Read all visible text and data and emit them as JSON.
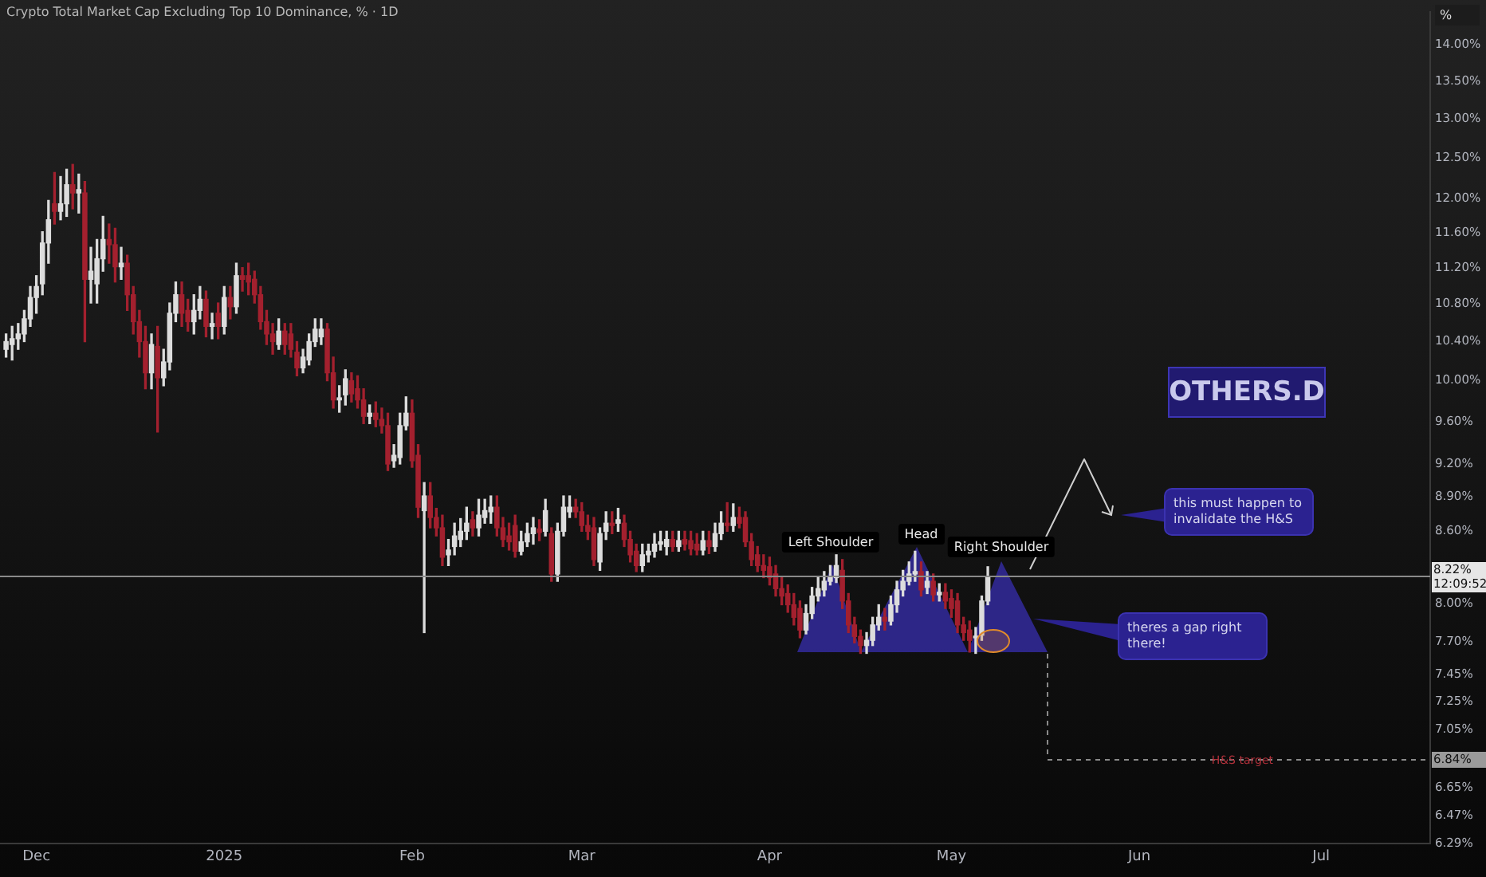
{
  "chart_data": {
    "type": "candlestick",
    "title": "Crypto Total Market Cap Excluding Top 10 Dominance, % · 1D",
    "ylabel": "%",
    "x": [
      "2024-11-26",
      "2024-11-27",
      "2024-11-28",
      "2024-11-29",
      "2024-11-30",
      "2024-12-01",
      "2024-12-02",
      "2024-12-03",
      "2024-12-04",
      "2024-12-05",
      "2024-12-06",
      "2024-12-07",
      "2024-12-08",
      "2024-12-09",
      "2024-12-10",
      "2024-12-11",
      "2024-12-12",
      "2024-12-13",
      "2024-12-14",
      "2024-12-15",
      "2024-12-16",
      "2024-12-17",
      "2024-12-18",
      "2024-12-19",
      "2024-12-20",
      "2024-12-21",
      "2024-12-22",
      "2024-12-23",
      "2024-12-24",
      "2024-12-25",
      "2024-12-26",
      "2024-12-27",
      "2024-12-28",
      "2024-12-29",
      "2024-12-30",
      "2024-12-31",
      "2025-01-01",
      "2025-01-02",
      "2025-01-03",
      "2025-01-04",
      "2025-01-05",
      "2025-01-06",
      "2025-01-07",
      "2025-01-08",
      "2025-01-09",
      "2025-01-10",
      "2025-01-11",
      "2025-01-12",
      "2025-01-13",
      "2025-01-14",
      "2025-01-15",
      "2025-01-16",
      "2025-01-17",
      "2025-01-18",
      "2025-01-19",
      "2025-01-20",
      "2025-01-21",
      "2025-01-22",
      "2025-01-23",
      "2025-01-24",
      "2025-01-25",
      "2025-01-26",
      "2025-01-27",
      "2025-01-28",
      "2025-01-29",
      "2025-01-30",
      "2025-01-31",
      "2025-02-01",
      "2025-02-02",
      "2025-02-03",
      "2025-02-04",
      "2025-02-05",
      "2025-02-06",
      "2025-02-07",
      "2025-02-08",
      "2025-02-09",
      "2025-02-10",
      "2025-02-11",
      "2025-02-12",
      "2025-02-13",
      "2025-02-14",
      "2025-02-15",
      "2025-02-16",
      "2025-02-17",
      "2025-02-18",
      "2025-02-19",
      "2025-02-20",
      "2025-02-21",
      "2025-02-22",
      "2025-02-23",
      "2025-02-24",
      "2025-02-25",
      "2025-02-26",
      "2025-02-27",
      "2025-02-28",
      "2025-03-01",
      "2025-03-02",
      "2025-03-03",
      "2025-03-04",
      "2025-03-05",
      "2025-03-06",
      "2025-03-07",
      "2025-03-08",
      "2025-03-09",
      "2025-03-10",
      "2025-03-11",
      "2025-03-12",
      "2025-03-13",
      "2025-03-14",
      "2025-03-15",
      "2025-03-16",
      "2025-03-17",
      "2025-03-18",
      "2025-03-19",
      "2025-03-20",
      "2025-03-21",
      "2025-03-22",
      "2025-03-23",
      "2025-03-24",
      "2025-03-25",
      "2025-03-26",
      "2025-03-27",
      "2025-03-28",
      "2025-03-29",
      "2025-03-30",
      "2025-03-31",
      "2025-04-01",
      "2025-04-02",
      "2025-04-03",
      "2025-04-04",
      "2025-04-05",
      "2025-04-06",
      "2025-04-07",
      "2025-04-08",
      "2025-04-09",
      "2025-04-10",
      "2025-04-11",
      "2025-04-12",
      "2025-04-13",
      "2025-04-14",
      "2025-04-15",
      "2025-04-16",
      "2025-04-17",
      "2025-04-18",
      "2025-04-19",
      "2025-04-20",
      "2025-04-21",
      "2025-04-22",
      "2025-04-23",
      "2025-04-24",
      "2025-04-25",
      "2025-04-26",
      "2025-04-27",
      "2025-04-28",
      "2025-04-29",
      "2025-04-30",
      "2025-05-01",
      "2025-05-02",
      "2025-05-03",
      "2025-05-04",
      "2025-05-05",
      "2025-05-06",
      "2025-05-07"
    ],
    "ohlc": [
      [
        10.32,
        10.48,
        10.24,
        10.4
      ],
      [
        10.37,
        10.56,
        10.21,
        10.43
      ],
      [
        10.43,
        10.59,
        10.32,
        10.48
      ],
      [
        10.48,
        10.73,
        10.4,
        10.64
      ],
      [
        10.64,
        10.99,
        10.56,
        10.87
      ],
      [
        10.87,
        11.11,
        10.7,
        10.99
      ],
      [
        11.02,
        11.61,
        10.9,
        11.48
      ],
      [
        11.48,
        11.98,
        11.25,
        11.75
      ],
      [
        11.94,
        12.32,
        11.7,
        11.85
      ],
      [
        11.85,
        12.27,
        11.75,
        11.94
      ],
      [
        11.94,
        12.36,
        11.79,
        12.17
      ],
      [
        12.17,
        12.42,
        11.88,
        12.07
      ],
      [
        12.07,
        12.3,
        11.83,
        12.11
      ],
      [
        12.07,
        12.21,
        10.4,
        11.07
      ],
      [
        11.07,
        11.43,
        10.81,
        11.16
      ],
      [
        11.02,
        11.52,
        10.81,
        11.3
      ],
      [
        11.3,
        11.79,
        11.16,
        11.52
      ],
      [
        11.52,
        11.7,
        11.25,
        11.46
      ],
      [
        11.46,
        11.65,
        11.04,
        11.21
      ],
      [
        11.21,
        11.43,
        11.07,
        11.25
      ],
      [
        11.25,
        11.34,
        10.73,
        10.9
      ],
      [
        10.9,
        10.99,
        10.48,
        10.61
      ],
      [
        10.61,
        10.73,
        10.24,
        10.4
      ],
      [
        10.4,
        10.56,
        9.92,
        10.08
      ],
      [
        10.08,
        10.48,
        9.92,
        10.37
      ],
      [
        10.35,
        10.56,
        9.5,
        10.03
      ],
      [
        10.03,
        10.32,
        9.95,
        10.19
      ],
      [
        10.19,
        10.81,
        10.11,
        10.7
      ],
      [
        10.7,
        11.04,
        10.61,
        10.9
      ],
      [
        10.9,
        11.04,
        10.56,
        10.7
      ],
      [
        10.73,
        10.85,
        10.51,
        10.61
      ],
      [
        10.61,
        10.9,
        10.48,
        10.73
      ],
      [
        10.73,
        10.99,
        10.64,
        10.85
      ],
      [
        10.85,
        10.94,
        10.45,
        10.56
      ],
      [
        10.56,
        10.7,
        10.43,
        10.59
      ],
      [
        10.7,
        10.81,
        10.43,
        10.56
      ],
      [
        10.56,
        10.99,
        10.48,
        10.87
      ],
      [
        10.87,
        10.99,
        10.64,
        10.77
      ],
      [
        10.77,
        11.25,
        10.7,
        11.11
      ],
      [
        11.11,
        11.2,
        10.94,
        11.07
      ],
      [
        11.11,
        11.25,
        10.9,
        11.04
      ],
      [
        11.07,
        11.16,
        10.81,
        10.9
      ],
      [
        10.9,
        10.99,
        10.53,
        10.61
      ],
      [
        10.61,
        10.73,
        10.37,
        10.48
      ],
      [
        10.48,
        10.59,
        10.27,
        10.4
      ],
      [
        10.37,
        10.64,
        10.32,
        10.51
      ],
      [
        10.51,
        10.59,
        10.27,
        10.37
      ],
      [
        10.48,
        10.59,
        10.24,
        10.32
      ],
      [
        10.29,
        10.4,
        10.05,
        10.13
      ],
      [
        10.13,
        10.32,
        10.08,
        10.24
      ],
      [
        10.21,
        10.48,
        10.16,
        10.4
      ],
      [
        10.4,
        10.64,
        10.35,
        10.53
      ],
      [
        10.45,
        10.64,
        10.37,
        10.53
      ],
      [
        10.53,
        10.59,
        10.0,
        10.08
      ],
      [
        10.08,
        10.24,
        9.73,
        9.81
      ],
      [
        9.81,
        9.95,
        9.69,
        9.83
      ],
      [
        9.86,
        10.11,
        9.76,
        10.02
      ],
      [
        10.0,
        10.08,
        9.79,
        9.87
      ],
      [
        9.92,
        10.05,
        9.73,
        9.81
      ],
      [
        9.81,
        9.92,
        9.58,
        9.65
      ],
      [
        9.65,
        9.76,
        9.58,
        9.68
      ],
      [
        9.68,
        9.79,
        9.55,
        9.62
      ],
      [
        9.62,
        9.73,
        9.49,
        9.56
      ],
      [
        9.56,
        9.68,
        9.14,
        9.2
      ],
      [
        9.23,
        9.38,
        9.17,
        9.28
      ],
      [
        9.26,
        9.68,
        9.2,
        9.56
      ],
      [
        9.56,
        9.84,
        9.52,
        9.68
      ],
      [
        9.68,
        9.81,
        9.17,
        9.23
      ],
      [
        9.28,
        9.38,
        8.72,
        8.81
      ],
      [
        8.78,
        9.03,
        7.77,
        8.91
      ],
      [
        8.91,
        9.03,
        8.63,
        8.72
      ],
      [
        8.72,
        8.8,
        8.56,
        8.63
      ],
      [
        8.63,
        8.74,
        8.31,
        8.38
      ],
      [
        8.4,
        8.53,
        8.31,
        8.44
      ],
      [
        8.47,
        8.67,
        8.4,
        8.56
      ],
      [
        8.53,
        8.71,
        8.47,
        8.6
      ],
      [
        8.6,
        8.81,
        8.53,
        8.67
      ],
      [
        8.7,
        8.77,
        8.56,
        8.63
      ],
      [
        8.63,
        8.88,
        8.56,
        8.74
      ],
      [
        8.72,
        8.88,
        8.67,
        8.78
      ],
      [
        8.77,
        8.91,
        8.67,
        8.81
      ],
      [
        8.81,
        8.91,
        8.56,
        8.63
      ],
      [
        8.63,
        8.72,
        8.47,
        8.53
      ],
      [
        8.56,
        8.67,
        8.44,
        8.51
      ],
      [
        8.65,
        8.74,
        8.38,
        8.43
      ],
      [
        8.43,
        8.6,
        8.4,
        8.51
      ],
      [
        8.51,
        8.67,
        8.47,
        8.58
      ],
      [
        8.58,
        8.72,
        8.49,
        8.63
      ],
      [
        8.62,
        8.7,
        8.52,
        8.59
      ],
      [
        8.6,
        8.88,
        8.56,
        8.78
      ],
      [
        8.58,
        8.63,
        8.18,
        8.24
      ],
      [
        8.24,
        8.67,
        8.18,
        8.6
      ],
      [
        8.6,
        8.91,
        8.56,
        8.81
      ],
      [
        8.77,
        8.91,
        8.72,
        8.81
      ],
      [
        8.81,
        8.88,
        8.72,
        8.77
      ],
      [
        8.77,
        8.85,
        8.6,
        8.65
      ],
      [
        8.65,
        8.74,
        8.53,
        8.6
      ],
      [
        8.63,
        8.72,
        8.31,
        8.36
      ],
      [
        8.34,
        8.63,
        8.27,
        8.58
      ],
      [
        8.6,
        8.77,
        8.53,
        8.67
      ],
      [
        8.67,
        8.77,
        8.58,
        8.65
      ],
      [
        8.67,
        8.8,
        8.6,
        8.7
      ],
      [
        8.67,
        8.74,
        8.47,
        8.53
      ],
      [
        8.53,
        8.6,
        8.34,
        8.4
      ],
      [
        8.43,
        8.49,
        8.26,
        8.31
      ],
      [
        8.31,
        8.49,
        8.26,
        8.4
      ],
      [
        8.4,
        8.49,
        8.34,
        8.43
      ],
      [
        8.43,
        8.58,
        8.38,
        8.49
      ],
      [
        8.49,
        8.6,
        8.44,
        8.51
      ],
      [
        8.47,
        8.6,
        8.4,
        8.53
      ],
      [
        8.53,
        8.6,
        8.43,
        8.47
      ],
      [
        8.47,
        8.6,
        8.43,
        8.52
      ],
      [
        8.53,
        8.6,
        8.44,
        8.49
      ],
      [
        8.52,
        8.6,
        8.4,
        8.45
      ],
      [
        8.49,
        8.58,
        8.4,
        8.44
      ],
      [
        8.44,
        8.6,
        8.4,
        8.52
      ],
      [
        8.52,
        8.6,
        8.41,
        8.47
      ],
      [
        8.47,
        8.67,
        8.43,
        8.58
      ],
      [
        8.58,
        8.77,
        8.53,
        8.67
      ],
      [
        8.67,
        8.85,
        8.6,
        8.65
      ],
      [
        8.65,
        8.84,
        8.6,
        8.72
      ],
      [
        8.72,
        8.81,
        8.63,
        8.67
      ],
      [
        8.72,
        8.77,
        8.47,
        8.51
      ],
      [
        8.51,
        8.58,
        8.31,
        8.36
      ],
      [
        8.4,
        8.47,
        8.26,
        8.31
      ],
      [
        8.31,
        8.4,
        8.21,
        8.27
      ],
      [
        8.3,
        8.38,
        8.15,
        8.21
      ],
      [
        8.24,
        8.31,
        8.06,
        8.12
      ],
      [
        8.12,
        8.21,
        7.99,
        8.06
      ],
      [
        8.08,
        8.15,
        7.93,
        7.99
      ],
      [
        7.99,
        8.08,
        7.83,
        7.89
      ],
      [
        7.96,
        8.02,
        7.73,
        7.79
      ],
      [
        7.79,
        7.99,
        7.76,
        7.92
      ],
      [
        7.92,
        8.13,
        7.88,
        8.06
      ],
      [
        8.06,
        8.21,
        8.02,
        8.12
      ],
      [
        8.11,
        8.26,
        8.06,
        8.18
      ],
      [
        8.18,
        8.31,
        8.15,
        8.21
      ],
      [
        8.21,
        8.4,
        8.17,
        8.31
      ],
      [
        8.27,
        8.36,
        7.96,
        8.02
      ],
      [
        8.02,
        8.08,
        7.77,
        7.83
      ],
      [
        7.83,
        7.89,
        7.69,
        7.74
      ],
      [
        7.74,
        7.79,
        7.61,
        7.67
      ],
      [
        7.67,
        7.77,
        7.61,
        7.71
      ],
      [
        7.71,
        7.89,
        7.67,
        7.83
      ],
      [
        7.83,
        7.99,
        7.79,
        7.89
      ],
      [
        7.89,
        7.96,
        7.79,
        7.86
      ],
      [
        7.86,
        8.06,
        7.83,
        7.99
      ],
      [
        7.99,
        8.18,
        7.93,
        8.11
      ],
      [
        8.11,
        8.27,
        8.06,
        8.18
      ],
      [
        8.18,
        8.34,
        8.15,
        8.24
      ],
      [
        8.24,
        8.43,
        8.18,
        8.26
      ],
      [
        8.26,
        8.34,
        8.06,
        8.11
      ],
      [
        8.13,
        8.26,
        8.08,
        8.18
      ],
      [
        8.18,
        8.24,
        8.02,
        8.07
      ],
      [
        8.07,
        8.16,
        8.02,
        8.09
      ],
      [
        8.09,
        8.16,
        7.96,
        8.02
      ],
      [
        8.04,
        8.11,
        7.89,
        7.96
      ],
      [
        8.02,
        8.08,
        7.77,
        7.83
      ],
      [
        7.83,
        7.89,
        7.71,
        7.77
      ],
      [
        7.79,
        7.86,
        7.62,
        7.71
      ],
      [
        7.73,
        7.81,
        7.61,
        7.74
      ],
      [
        7.75,
        8.06,
        7.71,
        8.02
      ],
      [
        8.02,
        8.3,
        7.99,
        8.22
      ]
    ],
    "colors": [
      "#dcdcdc",
      "#dcdcdc",
      "#dcdcdc",
      "#dcdcdc",
      "#dcdcdc",
      "#dcdcdc",
      "#dcdcdc",
      "#dcdcdc",
      "#a3202e",
      "#dcdcdc",
      "#dcdcdc",
      "#a3202e",
      "#dcdcdc",
      "#a3202e",
      "#dcdcdc",
      "#dcdcdc",
      "#dcdcdc",
      "#a3202e",
      "#a3202e",
      "#dcdcdc",
      "#a3202e",
      "#a3202e",
      "#a3202e",
      "#a3202e",
      "#dcdcdc",
      "#a3202e",
      "#dcdcdc",
      "#dcdcdc",
      "#dcdcdc",
      "#a3202e",
      "#a3202e",
      "#dcdcdc",
      "#dcdcdc",
      "#a3202e",
      "#dcdcdc",
      "#a3202e",
      "#dcdcdc",
      "#a3202e",
      "#dcdcdc",
      "#a3202e",
      "#a3202e",
      "#a3202e",
      "#a3202e",
      "#a3202e",
      "#a3202e",
      "#dcdcdc",
      "#a3202e",
      "#a3202e",
      "#a3202e",
      "#dcdcdc",
      "#dcdcdc",
      "#dcdcdc",
      "#dcdcdc",
      "#a3202e",
      "#a3202e",
      "#dcdcdc",
      "#dcdcdc",
      "#a3202e",
      "#a3202e",
      "#a3202e",
      "#dcdcdc",
      "#a3202e",
      "#a3202e",
      "#a3202e",
      "#dcdcdc",
      "#dcdcdc",
      "#dcdcdc",
      "#a3202e",
      "#a3202e",
      "#dcdcdc",
      "#a3202e",
      "#a3202e",
      "#a3202e",
      "#dcdcdc",
      "#dcdcdc",
      "#dcdcdc",
      "#dcdcdc",
      "#a3202e",
      "#dcdcdc",
      "#dcdcdc",
      "#dcdcdc",
      "#a3202e",
      "#a3202e",
      "#a3202e",
      "#a3202e",
      "#dcdcdc",
      "#dcdcdc",
      "#dcdcdc",
      "#a3202e",
      "#dcdcdc",
      "#a3202e",
      "#dcdcdc",
      "#dcdcdc",
      "#dcdcdc",
      "#a3202e",
      "#a3202e",
      "#a3202e",
      "#a3202e",
      "#dcdcdc",
      "#dcdcdc",
      "#a3202e",
      "#dcdcdc",
      "#a3202e",
      "#a3202e",
      "#a3202e",
      "#dcdcdc",
      "#dcdcdc",
      "#dcdcdc",
      "#dcdcdc",
      "#dcdcdc",
      "#a3202e",
      "#dcdcdc",
      "#a3202e",
      "#a3202e",
      "#a3202e",
      "#dcdcdc",
      "#a3202e",
      "#dcdcdc",
      "#dcdcdc",
      "#a3202e",
      "#dcdcdc",
      "#a3202e",
      "#a3202e",
      "#a3202e",
      "#a3202e",
      "#a3202e",
      "#a3202e",
      "#a3202e",
      "#a3202e",
      "#a3202e",
      "#a3202e",
      "#a3202e",
      "#dcdcdc",
      "#dcdcdc",
      "#dcdcdc",
      "#dcdcdc",
      "#dcdcdc",
      "#dcdcdc",
      "#a3202e",
      "#a3202e",
      "#a3202e",
      "#a3202e",
      "#dcdcdc",
      "#dcdcdc",
      "#dcdcdc",
      "#a3202e",
      "#dcdcdc",
      "#dcdcdc",
      "#dcdcdc",
      "#dcdcdc",
      "#dcdcdc",
      "#a3202e",
      "#dcdcdc",
      "#a3202e",
      "#dcdcdc",
      "#a3202e",
      "#a3202e",
      "#a3202e",
      "#a3202e",
      "#a3202e",
      "#dcdcdc",
      "#dcdcdc",
      "#dcdcdc"
    ],
    "xlim": [
      "2024-11-25",
      "2025-07-19"
    ],
    "xticks": [
      {
        "value": "2024-12-01",
        "label": "Dec"
      },
      {
        "value": "2025-01-01",
        "label": "2025"
      },
      {
        "value": "2025-02-01",
        "label": "Feb"
      },
      {
        "value": "2025-03-01",
        "label": "Mar"
      },
      {
        "value": "2025-04-01",
        "label": "Apr"
      },
      {
        "value": "2025-05-01",
        "label": "May"
      },
      {
        "value": "2025-06-01",
        "label": "Jun"
      },
      {
        "value": "2025-07-01",
        "label": "Jul"
      }
    ],
    "ylim": [
      6.29,
      14.47
    ],
    "log": true,
    "grid": false,
    "yticks": [
      {
        "value": 14,
        "label": "14.00%"
      },
      {
        "value": 13.5,
        "label": "13.50%"
      },
      {
        "value": 13,
        "label": "13.00%"
      },
      {
        "value": 12.5,
        "label": "12.50%"
      },
      {
        "value": 12,
        "label": "12.00%"
      },
      {
        "value": 11.6,
        "label": "11.60%"
      },
      {
        "value": 11.2,
        "label": "11.20%"
      },
      {
        "value": 10.8,
        "label": "10.80%"
      },
      {
        "value": 10.4,
        "label": "10.40%"
      },
      {
        "value": 10,
        "label": "10.00%"
      },
      {
        "value": 9.6,
        "label": "9.60%"
      },
      {
        "value": 9.2,
        "label": "9.20%"
      },
      {
        "value": 8.9,
        "label": "8.90%"
      },
      {
        "value": 8.6,
        "label": "8.60%"
      },
      {
        "value": 8.0,
        "label": "8.00%"
      },
      {
        "value": 7.7,
        "label": "7.70%"
      },
      {
        "value": 7.45,
        "label": "7.45%"
      },
      {
        "value": 7.25,
        "label": "7.25%"
      },
      {
        "value": 7.05,
        "label": "7.05%"
      },
      {
        "value": 6.65,
        "label": "6.65%"
      },
      {
        "value": 6.47,
        "label": "6.47%"
      },
      {
        "value": 6.29,
        "label": "6.29%"
      }
    ],
    "ref_lines": [
      {
        "axis": "y",
        "value": 8.22,
        "label": "8.22%\n12:09:52",
        "color": "#8a8a8a",
        "line_style": "solid"
      },
      {
        "axis": "y",
        "value": 6.84,
        "label": "6.84%",
        "color": "#8a8a8a",
        "line_style": "dashed"
      }
    ],
    "annotations": [
      "Left Shoulder",
      {
        "text": "Head",
        "x": "2025-04-26",
        "y": 8.58
      },
      "Right Shoulder",
      "this must happen to invalidate the H&S",
      "theres a gap right there!",
      {
        "text": "H&S target",
        "x": "2025-06-18",
        "y": 6.84
      },
      "OTHERS.D"
    ]
  }
}
